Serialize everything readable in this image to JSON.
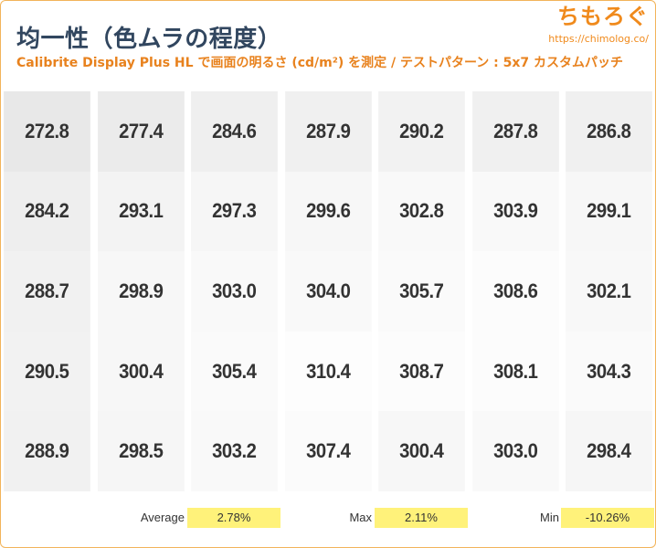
{
  "header": {
    "title": "均一性（色ムラの程度）",
    "subtitle": "Calibrite Display Plus HL で画面の明るさ (cd/m²) を測定 / テストパターン : 5x7 カスタムパッチ"
  },
  "logo": {
    "text": "ちもろぐ",
    "url": "https://chimolog.co/"
  },
  "chart_data": {
    "type": "heatmap",
    "rows": 5,
    "cols": 7,
    "values": [
      [
        "272.8",
        "277.4",
        "284.6",
        "287.9",
        "290.2",
        "287.8",
        "286.8"
      ],
      [
        "284.2",
        "293.1",
        "297.3",
        "299.6",
        "302.8",
        "303.9",
        "299.1"
      ],
      [
        "288.7",
        "298.9",
        "303.0",
        "304.0",
        "305.7",
        "308.6",
        "302.1"
      ],
      [
        "290.5",
        "300.4",
        "305.4",
        "310.4",
        "308.7",
        "308.1",
        "304.3"
      ],
      [
        "288.9",
        "298.5",
        "303.2",
        "307.4",
        "300.4",
        "303.0",
        "298.4"
      ]
    ]
  },
  "stats": {
    "average": {
      "label": "Average",
      "value": "2.78%"
    },
    "max": {
      "label": "Max",
      "value": "2.11%"
    },
    "min": {
      "label": "Min",
      "value": "-10.26%"
    }
  },
  "colors": {
    "title": "#31465f",
    "subtitle": "#e8821e",
    "logo": "#f08a1c",
    "highlight": "#fff27a",
    "border": "#f2b45a"
  }
}
